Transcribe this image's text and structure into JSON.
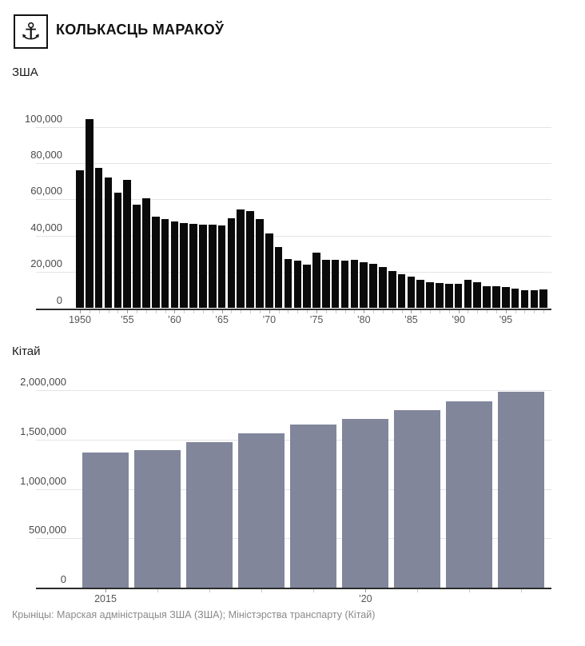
{
  "header": {
    "title": "КОЛЬКАСЦЬ МАРАКОЎ"
  },
  "icons": {
    "anchor": "⚓"
  },
  "source_line": "Крыніцы: Марская адміністрацыя ЗША (ЗША); Міністэрства транспарту (Кітай)",
  "colors": {
    "us_bar": "#0a0a0a",
    "china_bar": "#81869b",
    "gridline": "#e4e4e4",
    "axis": "#2b2b2b",
    "tick_label": "#555555",
    "source_text": "#8a8a8a"
  },
  "chart_data": [
    {
      "type": "bar",
      "title": "ЗША",
      "xlabel": "",
      "ylabel": "",
      "grid": true,
      "legend": "none",
      "ylim": [
        0,
        100000
      ],
      "bar_color": "#0a0a0a",
      "yticks": [
        {
          "value": 0,
          "label": "0"
        },
        {
          "value": 20000,
          "label": "20,000"
        },
        {
          "value": 40000,
          "label": "40,000"
        },
        {
          "value": 60000,
          "label": "60,000"
        },
        {
          "value": 80000,
          "label": "80,000"
        },
        {
          "value": 100000,
          "label": "100,000"
        }
      ],
      "xticks": [
        {
          "x": 1950,
          "label": "1950"
        },
        {
          "x": 1955,
          "label": "’55"
        },
        {
          "x": 1960,
          "label": "’60"
        },
        {
          "x": 1965,
          "label": "’65"
        },
        {
          "x": 1970,
          "label": "’70"
        },
        {
          "x": 1975,
          "label": "’75"
        },
        {
          "x": 1980,
          "label": "’80"
        },
        {
          "x": 1985,
          "label": "’85"
        },
        {
          "x": 1990,
          "label": "’90"
        },
        {
          "x": 1995,
          "label": "’95"
        }
      ],
      "x": [
        1950,
        1951,
        1952,
        1953,
        1954,
        1955,
        1956,
        1957,
        1958,
        1959,
        1960,
        1961,
        1962,
        1963,
        1964,
        1965,
        1966,
        1967,
        1968,
        1969,
        1970,
        1971,
        1972,
        1973,
        1974,
        1975,
        1976,
        1977,
        1978,
        1979,
        1980,
        1981,
        1982,
        1983,
        1984,
        1985,
        1986,
        1987,
        1988,
        1989,
        1990,
        1991,
        1992,
        1993,
        1994,
        1995,
        1996,
        1997,
        1998,
        1999
      ],
      "values": [
        76000,
        104000,
        77500,
        72000,
        63500,
        70500,
        57000,
        60500,
        50500,
        49000,
        48000,
        47000,
        46500,
        46000,
        46200,
        45800,
        49700,
        54600,
        53600,
        49200,
        41400,
        33600,
        27000,
        26000,
        24200,
        30700,
        26500,
        26500,
        26200,
        26800,
        25400,
        24500,
        22600,
        20300,
        18700,
        17500,
        15600,
        14300,
        14000,
        13600,
        13300,
        15600,
        14500,
        11900,
        12300,
        11700,
        10900,
        9700,
        9900,
        10400
      ]
    },
    {
      "type": "bar",
      "title": "Кітай",
      "xlabel": "",
      "ylabel": "",
      "grid": true,
      "legend": "none",
      "ylim": [
        0,
        2000000
      ],
      "bar_color": "#81869b",
      "yticks": [
        {
          "value": 0,
          "label": "0"
        },
        {
          "value": 500000,
          "label": "500,000"
        },
        {
          "value": 1000000,
          "label": "1,000,000"
        },
        {
          "value": 1500000,
          "label": "1,500,000"
        },
        {
          "value": 2000000,
          "label": "2,000,000"
        }
      ],
      "xticks": [
        {
          "x": 2015,
          "label": "2015"
        },
        {
          "x": 2020,
          "label": "’20"
        }
      ],
      "x": [
        2015,
        2016,
        2017,
        2018,
        2019,
        2020,
        2021,
        2022,
        2023
      ],
      "values": [
        1370000,
        1390000,
        1470000,
        1560000,
        1650000,
        1710000,
        1800000,
        1890000,
        1980000
      ]
    }
  ]
}
